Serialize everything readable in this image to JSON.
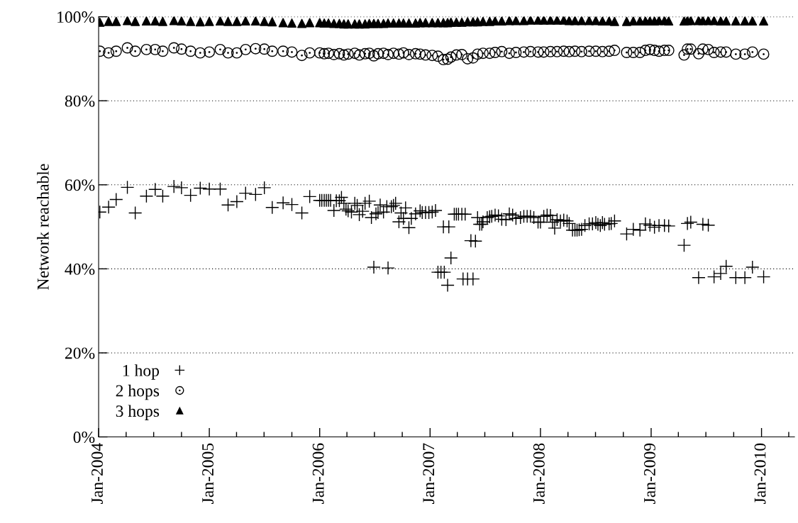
{
  "chart_data": {
    "type": "scatter",
    "ylabel": "Network reachable",
    "xlim": [
      "2004-01-01",
      "2010-04-20"
    ],
    "xticks": [
      {
        "value": "2004-01-01",
        "label": "Jan-2004"
      },
      {
        "value": "2004-04-01",
        "label": null
      },
      {
        "value": "2004-07-01",
        "label": null
      },
      {
        "value": "2004-10-01",
        "label": null
      },
      {
        "value": "2005-01-01",
        "label": "Jan-2005"
      },
      {
        "value": "2005-04-01",
        "label": null
      },
      {
        "value": "2005-07-01",
        "label": null
      },
      {
        "value": "2005-10-01",
        "label": null
      },
      {
        "value": "2006-01-01",
        "label": "Jan-2006"
      },
      {
        "value": "2006-04-01",
        "label": null
      },
      {
        "value": "2006-07-01",
        "label": null
      },
      {
        "value": "2006-10-01",
        "label": null
      },
      {
        "value": "2007-01-01",
        "label": "Jan-2007"
      },
      {
        "value": "2007-04-01",
        "label": null
      },
      {
        "value": "2007-07-01",
        "label": null
      },
      {
        "value": "2007-10-01",
        "label": null
      },
      {
        "value": "2008-01-01",
        "label": "Jan-2008"
      },
      {
        "value": "2008-04-01",
        "label": null
      },
      {
        "value": "2008-07-01",
        "label": null
      },
      {
        "value": "2008-10-01",
        "label": null
      },
      {
        "value": "2009-01-01",
        "label": "Jan-2009"
      },
      {
        "value": "2009-04-01",
        "label": null
      },
      {
        "value": "2009-07-01",
        "label": null
      },
      {
        "value": "2009-10-01",
        "label": null
      },
      {
        "value": "2010-01-01",
        "label": "Jan-2010"
      },
      {
        "value": "2010-04-01",
        "label": null
      }
    ],
    "ylim": [
      0,
      100
    ],
    "yticks": [
      {
        "value": 0,
        "label": "0%"
      },
      {
        "value": 20,
        "label": "20%"
      },
      {
        "value": 40,
        "label": "40%"
      },
      {
        "value": 60,
        "label": "60%"
      },
      {
        "value": 80,
        "label": "80%"
      },
      {
        "value": 100,
        "label": "100%"
      }
    ],
    "grid": "y",
    "legend": "bottom left",
    "x": [
      "2004-01-05",
      "2004-02-03",
      "2004-02-28",
      "2004-04-05",
      "2004-05-01",
      "2004-06-07",
      "2004-07-06",
      "2004-07-31",
      "2004-09-06",
      "2004-10-01",
      "2004-10-31",
      "2004-12-02",
      "2005-01-01",
      "2005-02-06",
      "2005-03-04",
      "2005-04-02",
      "2005-05-01",
      "2005-06-03",
      "2005-07-02",
      "2005-07-28",
      "2005-09-02",
      "2005-10-01",
      "2005-11-03",
      "2005-11-29",
      "2006-01-01",
      "2006-01-16",
      "2006-01-30",
      "2006-02-17",
      "2006-03-07",
      "2006-03-22",
      "2006-04-05",
      "2006-04-27",
      "2006-05-12",
      "2006-05-31",
      "2006-06-14",
      "2006-06-29",
      "2006-07-13",
      "2006-07-31",
      "2006-08-15",
      "2006-09-02",
      "2006-09-20",
      "2006-10-05",
      "2006-10-23",
      "2006-11-14",
      "2006-11-29",
      "2006-12-17",
      "2007-01-08",
      "2007-01-27",
      "2007-02-14",
      "2007-02-28",
      "2007-03-11",
      "2007-03-29",
      "2007-04-16",
      "2007-05-05",
      "2007-05-23",
      "2007-06-07",
      "2007-06-25",
      "2007-07-17",
      "2007-08-04",
      "2007-08-26",
      "2007-09-20",
      "2007-10-12",
      "2007-11-07",
      "2007-11-29",
      "2007-12-24",
      "2008-01-12",
      "2008-02-03",
      "2008-02-25",
      "2008-03-18",
      "2008-04-05",
      "2008-04-24",
      "2008-05-16",
      "2008-06-10",
      "2008-07-02",
      "2008-07-24",
      "2008-08-15",
      "2008-09-02",
      "2008-10-12",
      "2008-11-03",
      "2008-11-25",
      "2008-12-13",
      "2008-12-28",
      "2009-01-12",
      "2009-01-27",
      "2009-02-14",
      "2009-02-28",
      "2009-04-20",
      "2009-05-01",
      "2009-05-12",
      "2009-06-07",
      "2009-06-21",
      "2009-07-09",
      "2009-07-28",
      "2009-08-19",
      "2009-09-06",
      "2009-10-08",
      "2009-11-07",
      "2009-12-02",
      "2010-01-08"
    ],
    "series": [
      {
        "name": "1 hop",
        "color": "#000000",
        "marker": "cross",
        "x": [
          "2004-01-05",
          "2004-02-03",
          "2004-02-28",
          "2004-04-05",
          "2004-05-01",
          "2004-06-07",
          "2004-07-06",
          "2004-07-31",
          "2004-09-06",
          "2004-10-01",
          "2004-10-31",
          "2004-12-02",
          "2005-01-01",
          "2005-02-06",
          "2005-03-04",
          "2005-04-02",
          "2005-05-01",
          "2005-06-03",
          "2005-07-02",
          "2005-07-28",
          "2005-09-02",
          "2005-10-01",
          "2005-11-03",
          "2005-11-29",
          "2006-01-01",
          "2006-01-08",
          "2006-01-16",
          "2006-01-23",
          "2006-01-30",
          "2006-02-06",
          "2006-02-17",
          "2006-02-25",
          "2006-03-07",
          "2006-03-14",
          "2006-03-22",
          "2006-03-29",
          "2006-04-05",
          "2006-04-16",
          "2006-04-27",
          "2006-05-05",
          "2006-05-12",
          "2006-05-23",
          "2006-05-31",
          "2006-06-14",
          "2006-06-21",
          "2006-06-29",
          "2006-07-06",
          "2006-07-13",
          "2006-07-20",
          "2006-07-31",
          "2006-08-11",
          "2006-08-15",
          "2006-08-26",
          "2006-09-02",
          "2006-09-09",
          "2006-09-20",
          "2006-09-27",
          "2006-10-05",
          "2006-10-12",
          "2006-10-23",
          "2006-10-31",
          "2006-11-14",
          "2006-11-29",
          "2006-12-06",
          "2006-12-17",
          "2006-12-28",
          "2007-01-08",
          "2007-01-19",
          "2007-01-27",
          "2007-02-06",
          "2007-02-14",
          "2007-02-17",
          "2007-02-28",
          "2007-03-04",
          "2007-03-11",
          "2007-03-22",
          "2007-03-29",
          "2007-04-05",
          "2007-04-16",
          "2007-04-20",
          "2007-04-27",
          "2007-05-05",
          "2007-05-16",
          "2007-05-23",
          "2007-05-31",
          "2007-06-07",
          "2007-06-14",
          "2007-06-21",
          "2007-06-25",
          "2007-07-09",
          "2007-07-17",
          "2007-07-24",
          "2007-08-04",
          "2007-08-15",
          "2007-08-26",
          "2007-09-09",
          "2007-09-20",
          "2007-10-01",
          "2007-10-12",
          "2007-10-27",
          "2007-11-07",
          "2007-11-18",
          "2007-11-29",
          "2007-12-10",
          "2007-12-24",
          "2008-01-01",
          "2008-01-12",
          "2008-01-23",
          "2008-02-03",
          "2008-02-10",
          "2008-02-17",
          "2008-02-25",
          "2008-03-07",
          "2008-03-18",
          "2008-03-29",
          "2008-04-05",
          "2008-04-16",
          "2008-04-24",
          "2008-05-01",
          "2008-05-08",
          "2008-05-16",
          "2008-05-27",
          "2008-06-10",
          "2008-06-21",
          "2008-07-02",
          "2008-07-09",
          "2008-07-17",
          "2008-07-24",
          "2008-07-31",
          "2008-08-15",
          "2008-08-22",
          "2008-09-02",
          "2008-10-12",
          "2008-11-03",
          "2008-11-25",
          "2008-12-13",
          "2008-12-28",
          "2009-01-12",
          "2009-01-27",
          "2009-02-14",
          "2009-02-28",
          "2009-04-20",
          "2009-05-01",
          "2009-05-12",
          "2009-06-07",
          "2009-06-21",
          "2009-07-09",
          "2009-07-28",
          "2009-08-19",
          "2009-09-06",
          "2009-10-08",
          "2009-11-07",
          "2009-12-02",
          "2010-01-08"
        ],
        "values": [
          53.5,
          54.7,
          56.5,
          59.4,
          53.3,
          57.3,
          58.9,
          57.3,
          59.6,
          59.3,
          57.5,
          59.2,
          59.0,
          59.0,
          55.2,
          56.0,
          58.0,
          57.7,
          59.3,
          54.6,
          55.7,
          55.3,
          53.3,
          57.2,
          56.3,
          56.3,
          56.3,
          56.3,
          56.3,
          56.3,
          53.9,
          56.2,
          56.2,
          57.0,
          55.6,
          54.2,
          53.8,
          53.5,
          55.6,
          55.1,
          52.9,
          53.7,
          55.6,
          56.1,
          52.2,
          40.4,
          53.1,
          53.4,
          55.2,
          53.5,
          54.8,
          40.2,
          54.8,
          55.1,
          55.6,
          51.2,
          53.3,
          52.0,
          54.5,
          49.8,
          52.0,
          53.1,
          53.8,
          53.4,
          53.4,
          53.4,
          53.5,
          53.9,
          39.2,
          39.2,
          50.0,
          39.2,
          36.1,
          50.0,
          42.6,
          53.0,
          53.0,
          53.0,
          53.0,
          37.6,
          53.0,
          37.6,
          46.7,
          37.6,
          46.6,
          52.2,
          50.6,
          50.6,
          51.2,
          52.2,
          52.4,
          52.5,
          52.8,
          52.6,
          51.8,
          51.7,
          53.1,
          52.8,
          52.0,
          52.2,
          52.5,
          52.5,
          52.5,
          52.2,
          51.1,
          51.1,
          52.5,
          52.8,
          52.7,
          51.1,
          49.7,
          51.7,
          51.4,
          51.6,
          51.4,
          50.8,
          49.2,
          49.2,
          49.2,
          49.3,
          49.4,
          50.3,
          50.7,
          50.7,
          51.0,
          50.6,
          50.3,
          51.0,
          50.6,
          50.7,
          50.8,
          51.4,
          48.3,
          49.4,
          49.2,
          50.7,
          50.4,
          49.9,
          50.3,
          50.3,
          50.2,
          45.6,
          50.8,
          51.1,
          37.9,
          50.6,
          50.4,
          38.1,
          38.9,
          40.6,
          37.9,
          37.9,
          40.4,
          38.1
        ]
      },
      {
        "name": "2 hops",
        "color": "#000000",
        "marker": "circle",
        "values": [
          91.8,
          91.4,
          91.8,
          92.6,
          91.8,
          92.2,
          92.2,
          91.8,
          92.6,
          92.3,
          91.8,
          91.4,
          91.6,
          92.2,
          91.4,
          91.4,
          92.2,
          92.4,
          92.3,
          91.8,
          91.8,
          91.6,
          90.8,
          91.4,
          91.4,
          91.2,
          91.3,
          91.0,
          91.2,
          90.9,
          91.1,
          91.3,
          90.9,
          91.2,
          91.3,
          90.7,
          91.2,
          91.3,
          91.0,
          91.3,
          91.1,
          91.4,
          91.0,
          91.2,
          91.1,
          90.9,
          90.8,
          90.6,
          89.8,
          89.9,
          90.4,
          90.9,
          91.0,
          90.0,
          90.2,
          91.1,
          91.3,
          91.3,
          91.5,
          91.7,
          91.3,
          91.5,
          91.6,
          91.7,
          91.6,
          91.6,
          91.7,
          91.7,
          91.8,
          91.7,
          91.8,
          91.7,
          91.8,
          91.8,
          91.7,
          91.8,
          92.0,
          91.5,
          91.5,
          91.5,
          92.0,
          92.2,
          92.0,
          91.8,
          92.0,
          92.0,
          90.9,
          92.3,
          92.3,
          91.2,
          92.3,
          92.2,
          91.5,
          91.6,
          91.6,
          91.1,
          91.1,
          91.6,
          91.1
        ]
      },
      {
        "name": "3 hops",
        "color": "#000000",
        "marker": "triangle",
        "values": [
          98.7,
          98.9,
          98.9,
          99.1,
          98.9,
          99.0,
          99.0,
          98.9,
          99.1,
          99.0,
          98.9,
          98.8,
          98.9,
          99.0,
          98.9,
          98.9,
          99.0,
          99.0,
          98.9,
          98.8,
          98.6,
          98.5,
          98.4,
          98.6,
          98.6,
          98.5,
          98.5,
          98.4,
          98.4,
          98.3,
          98.3,
          98.3,
          98.3,
          98.3,
          98.4,
          98.4,
          98.4,
          98.4,
          98.5,
          98.5,
          98.5,
          98.5,
          98.5,
          98.5,
          98.6,
          98.6,
          98.6,
          98.6,
          98.6,
          98.6,
          98.7,
          98.7,
          98.7,
          98.8,
          98.8,
          98.8,
          98.9,
          98.9,
          99.0,
          99.0,
          99.1,
          99.1,
          99.1,
          99.2,
          99.2,
          99.2,
          99.2,
          99.2,
          99.2,
          99.1,
          99.1,
          99.1,
          99.1,
          99.1,
          99.0,
          99.0,
          98.9,
          98.9,
          99.0,
          99.0,
          99.0,
          99.0,
          99.0,
          99.1,
          99.1,
          99.0,
          99.0,
          99.1,
          99.1,
          99.1,
          99.1,
          99.1,
          99.1,
          99.0,
          99.0,
          99.0,
          99.0,
          99.0,
          99.0
        ]
      }
    ]
  }
}
